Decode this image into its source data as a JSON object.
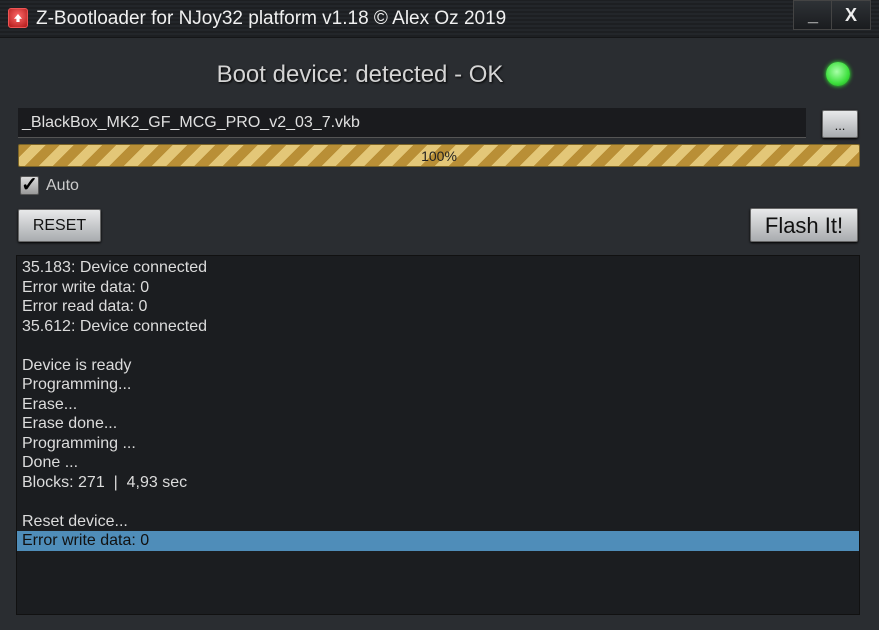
{
  "window": {
    "title": "Z-Bootloader for NJoy32 platform v1.18 © Alex Oz 2019",
    "minimize": "_",
    "close": "X"
  },
  "status": {
    "text": "Boot device: detected - OK",
    "led_color": "#3de03d"
  },
  "file": {
    "value": "_BlackBox_MK2_GF_MCG_PRO_v2_03_7.vkb",
    "browse_label": "..."
  },
  "progress": {
    "value": 100,
    "label": "100%"
  },
  "auto": {
    "label": "Auto",
    "checked": true,
    "mark": "✓"
  },
  "buttons": {
    "reset": "RESET",
    "flash": "Flash It!"
  },
  "log": {
    "lines": [
      "35.183: Device connected",
      "Error write data: 0",
      "Error read data: 0",
      "35.612: Device connected",
      "",
      "Device is ready",
      "Programming...",
      "Erase...",
      "Erase done...",
      "Programming ...",
      "Done ...",
      "Blocks: 271  |  4,93 sec",
      "",
      "Reset device...",
      "Error write data: 0"
    ],
    "selected_index": 14
  }
}
